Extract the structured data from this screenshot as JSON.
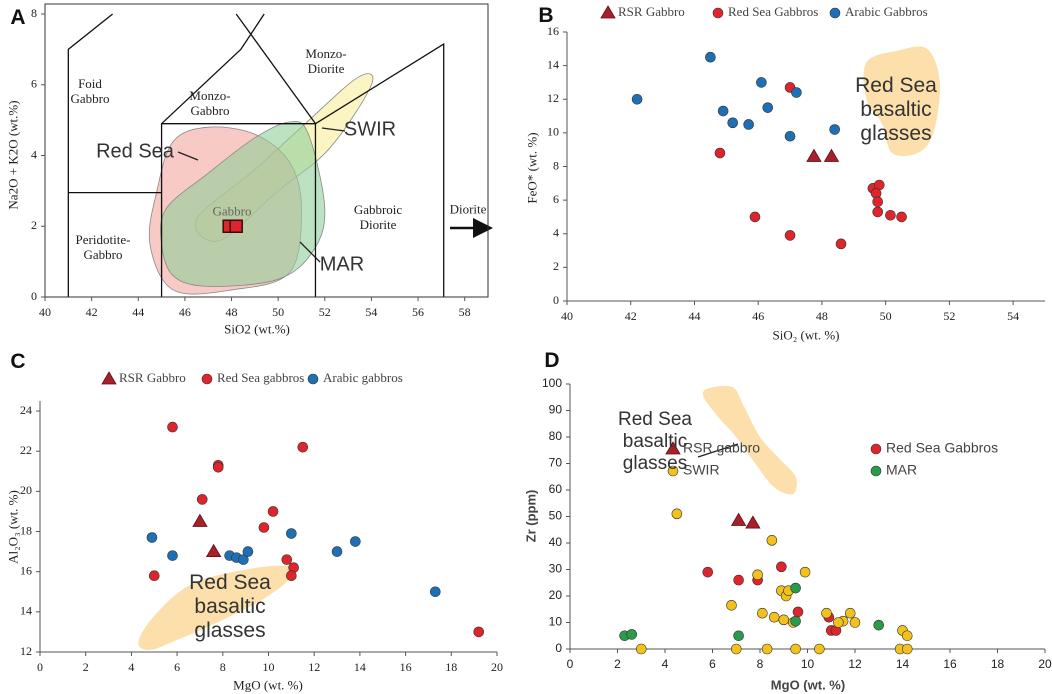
{
  "chart_data": [
    {
      "type": "scatter",
      "label": "A",
      "x_label": "SiO2 (wt.%)",
      "y_label": "Na2O + K2O (wt.%)",
      "xlim": [
        40,
        59
      ],
      "ylim": [
        0,
        8
      ],
      "xticks": [
        40,
        42,
        44,
        46,
        48,
        50,
        52,
        54,
        56,
        58
      ],
      "yticks": [
        0,
        2,
        4,
        6,
        8
      ],
      "annotations": [
        "Foid\nGabbro",
        "Monzo-\nGabbro",
        "Monzo-\nDiorite",
        "Gabbro",
        "Gabbroic\nDiorite",
        "Peridotite-\nGabbro",
        "Diorite"
      ],
      "boundaries": [
        {
          "x": [
            41,
            41,
            42.9
          ],
          "y": [
            0,
            7.0,
            8.0
          ]
        },
        {
          "x": [
            41,
            45
          ],
          "y": [
            2.95,
            2.95
          ]
        },
        {
          "x": [
            45,
            45,
            51.6,
            51.6
          ],
          "y": [
            0,
            4.9,
            4.9,
            0
          ]
        },
        {
          "x": [
            45,
            48.4,
            49.4
          ],
          "y": [
            4.9,
            7.0,
            8.0
          ]
        },
        {
          "x": [
            48.2,
            51.6
          ],
          "y": [
            8.0,
            4.9
          ]
        },
        {
          "x": [
            51.6,
            57.1,
            57.1
          ],
          "y": [
            4.9,
            7.15,
            0
          ]
        }
      ],
      "regions": [
        {
          "name": "SWIR",
          "color": "#f7ee9a",
          "x": [
            46.5,
            49,
            51,
            53.4,
            54,
            52.2,
            50,
            47.5
          ],
          "y": [
            2.2,
            3.6,
            4.8,
            6.2,
            6.0,
            4.2,
            3.0,
            1.6
          ]
        },
        {
          "name": "Red Sea",
          "color": "#f2a7a0",
          "x": [
            44.8,
            45.5,
            47,
            49,
            50.5,
            51,
            50.5,
            48,
            45.5,
            44.5
          ],
          "y": [
            3.0,
            4.4,
            4.8,
            4.6,
            3.8,
            2.5,
            0.7,
            0.2,
            0.2,
            1.5
          ]
        },
        {
          "name": "MAR",
          "color": "#8fcf9a",
          "x": [
            45.2,
            47,
            49,
            50.5,
            51.3,
            52,
            51.5,
            50,
            47,
            45.5,
            45
          ],
          "y": [
            2.5,
            3.5,
            4.5,
            4.95,
            4.6,
            2.5,
            1.3,
            0.5,
            0.3,
            0.6,
            1.5
          ]
        }
      ],
      "series": [
        {
          "color": "#e0242b",
          "marker": "square",
          "x": [
            47.9,
            48.2
          ],
          "values": [
            2.0,
            2.0
          ]
        }
      ]
    },
    {
      "type": "scatter",
      "label": "B",
      "x_label": "SiO₂ (wt. %)",
      "y_label": "FeO* (wt. %)",
      "xlim": [
        40,
        55
      ],
      "ylim": [
        0,
        16
      ],
      "xticks": [
        40,
        42,
        44,
        46,
        48,
        50,
        52,
        54
      ],
      "yticks": [
        0,
        2,
        4,
        6,
        8,
        10,
        12,
        14,
        16
      ],
      "regions": [
        {
          "name": "Red Sea\nbasaltic\nglasses",
          "color": "#fcd99b",
          "x": [
            49.4,
            50.4,
            51.3,
            51.7,
            51.5,
            51.0,
            50.2,
            49.9,
            49.4
          ],
          "y": [
            14.2,
            14.9,
            15.0,
            13.0,
            10.0,
            8.8,
            8.8,
            10.5,
            12.0
          ]
        }
      ],
      "series": [
        {
          "name": "RSR Gabbro",
          "color": "#a8202a",
          "marker": "triangle",
          "x": [
            47.75,
            48.3
          ],
          "values": [
            8.6,
            8.6
          ]
        },
        {
          "name": "Red Sea Gabbros",
          "color": "#e0242b",
          "marker": "circle",
          "x": [
            47.0,
            44.8,
            45.9,
            47.0,
            48.6,
            49.6,
            49.8,
            49.7,
            49.75,
            49.75,
            50.15,
            50.5
          ],
          "values": [
            12.7,
            8.8,
            5.0,
            3.9,
            3.4,
            6.7,
            6.9,
            6.4,
            5.9,
            5.3,
            5.1,
            5.0
          ]
        },
        {
          "name": "Arabic Gabbros",
          "color": "#1f6fb5",
          "marker": "circle",
          "x": [
            42.2,
            44.5,
            44.9,
            45.2,
            45.7,
            46.1,
            46.3,
            47.0,
            47.2,
            48.4
          ],
          "values": [
            12.0,
            14.5,
            11.3,
            10.6,
            10.5,
            13.0,
            11.5,
            9.8,
            12.4,
            10.2
          ]
        }
      ]
    },
    {
      "type": "scatter",
      "label": "C",
      "x_label": "MgO (wt. %)",
      "y_label": "Al₂O₃ (wt. %)",
      "xlim": [
        0,
        20
      ],
      "ylim": [
        12,
        24.5
      ],
      "xticks": [
        0,
        2,
        4,
        6,
        8,
        10,
        12,
        14,
        16,
        18,
        20
      ],
      "yticks": [
        12,
        14,
        16,
        18,
        20,
        22,
        24
      ],
      "regions": [
        {
          "name": "Red Sea\nbasaltic\nglasses",
          "color": "#fcd99b",
          "x": [
            4.3,
            5.0,
            6.5,
            8.5,
            10.5,
            11.2,
            10.0,
            8.0,
            6.0,
            4.8
          ],
          "y": [
            12.5,
            13.8,
            15.3,
            16.0,
            16.3,
            16.0,
            14.8,
            13.6,
            12.6,
            12.1
          ]
        }
      ],
      "series": [
        {
          "name": "RSR Gabbro",
          "color": "#a8202a",
          "marker": "triangle",
          "x": [
            7.0,
            7.6
          ],
          "values": [
            18.5,
            17.0
          ]
        },
        {
          "name": "Red Sea gabbros",
          "color": "#e0242b",
          "marker": "circle",
          "x": [
            5.8,
            7.8,
            7.8,
            11.5,
            7.1,
            10.2,
            9.8,
            5.0,
            10.8,
            11.1,
            11.0,
            19.2
          ],
          "values": [
            23.2,
            21.3,
            21.2,
            22.2,
            19.6,
            19.0,
            18.2,
            15.8,
            16.6,
            16.2,
            15.8,
            13.0
          ]
        },
        {
          "name": "Arabic gabbros",
          "color": "#1f6fb5",
          "marker": "circle",
          "x": [
            4.9,
            5.8,
            8.3,
            8.6,
            8.9,
            9.1,
            11.0,
            13.0,
            13.8,
            17.3
          ],
          "values": [
            17.7,
            16.8,
            16.8,
            16.7,
            16.6,
            17.0,
            17.9,
            17.0,
            17.5,
            15.0
          ]
        }
      ]
    },
    {
      "type": "scatter",
      "label": "D",
      "x_label": "MgO (wt. %)",
      "y_label": "Zr (ppm)",
      "xlim": [
        0,
        20
      ],
      "ylim": [
        0,
        100
      ],
      "xticks": [
        0,
        2,
        4,
        6,
        8,
        10,
        12,
        14,
        16,
        18,
        20
      ],
      "yticks": [
        0,
        10,
        20,
        30,
        40,
        50,
        60,
        70,
        80,
        90,
        100
      ],
      "regions": [
        {
          "name": "Red Sea\nbasaltic\nglasses",
          "color": "#fcd99b",
          "x": [
            5.6,
            6.8,
            7.3,
            8.0,
            8.8,
            9.5,
            9.4,
            8.6,
            7.8,
            7.0,
            6.2
          ],
          "y": [
            97,
            99,
            92,
            80,
            72,
            65,
            58.5,
            61,
            70,
            80,
            88
          ]
        }
      ],
      "series": [
        {
          "name": "RSR gabbro",
          "color": "#a8202a",
          "marker": "triangle",
          "x": [
            7.1,
            7.7
          ],
          "values": [
            48.5,
            47.5
          ]
        },
        {
          "name": "Red Sea Gabbros",
          "color": "#e0242b",
          "marker": "circle",
          "x": [
            5.8,
            7.1,
            7.9,
            8.9,
            9.6,
            10.9,
            11.0,
            11.2
          ],
          "values": [
            29,
            26,
            26,
            31,
            14,
            12,
            7,
            7
          ]
        },
        {
          "name": "SWIR",
          "color": "#f2c21b",
          "marker": "circle",
          "x": [
            4.5,
            8.5,
            7.9,
            9.9,
            8.9,
            9.1,
            9.2,
            6.8,
            8.1,
            8.6,
            9.0,
            9.4,
            10.8,
            11.5,
            11.8,
            12.0,
            14.0,
            14.2,
            11.3,
            3.0,
            7.0,
            8.3,
            9.5,
            10.5,
            13.9,
            14.2
          ],
          "values": [
            51,
            41,
            28,
            29,
            22,
            20,
            22,
            16.5,
            13.5,
            12,
            11,
            10,
            13.5,
            10.5,
            13.5,
            10,
            7,
            5,
            10,
            0,
            0,
            0,
            0,
            0,
            0,
            0
          ]
        },
        {
          "name": "MAR",
          "color": "#2a9b4a",
          "marker": "circle",
          "x": [
            2.3,
            2.6,
            7.1,
            9.5,
            9.5,
            13.0
          ],
          "values": [
            5,
            5.5,
            5,
            23,
            10.5,
            9
          ]
        }
      ]
    }
  ]
}
